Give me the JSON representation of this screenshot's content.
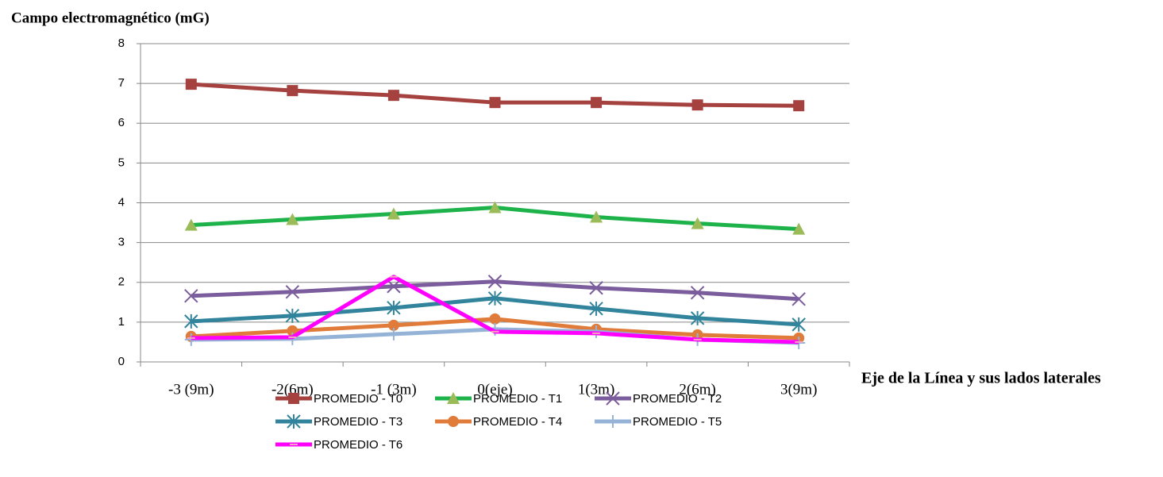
{
  "chart_data": {
    "type": "line",
    "title": "Campo electromagnético (mG)",
    "x_label": "Eje de la Línea y sus lados laterales",
    "categories": [
      "-3 (9m)",
      "-2(6m)",
      "-1 (3m)",
      "0(eje)",
      "1(3m)",
      "2(6m)",
      "3(9m)"
    ],
    "ylim": [
      0,
      8
    ],
    "yticks": [
      0,
      1,
      2,
      3,
      4,
      5,
      6,
      7,
      8
    ],
    "grid": true,
    "legend": "bottom",
    "series": [
      {
        "name": "PROMEDIO - T0",
        "color": "#a5413e",
        "marker": "square",
        "values": [
          6.98,
          6.82,
          6.7,
          6.52,
          6.52,
          6.46,
          6.44
        ]
      },
      {
        "name": "PROMEDIO - T1",
        "color": "#1db34a",
        "marker": "triangle",
        "values": [
          3.44,
          3.58,
          3.72,
          3.88,
          3.64,
          3.48,
          3.34
        ]
      },
      {
        "name": "PROMEDIO - T2",
        "color": "#7b5c9c",
        "marker": "cross",
        "values": [
          1.66,
          1.76,
          1.9,
          2.02,
          1.86,
          1.74,
          1.58
        ]
      },
      {
        "name": "PROMEDIO - T3",
        "color": "#31849b",
        "marker": "star",
        "values": [
          1.02,
          1.16,
          1.36,
          1.6,
          1.34,
          1.1,
          0.94
        ]
      },
      {
        "name": "PROMEDIO - T4",
        "color": "#e07b39",
        "marker": "circle",
        "values": [
          0.64,
          0.78,
          0.92,
          1.08,
          0.82,
          0.68,
          0.6
        ]
      },
      {
        "name": "PROMEDIO - T5",
        "color": "#95b3d7",
        "marker": "plus",
        "values": [
          0.56,
          0.58,
          0.7,
          0.82,
          0.76,
          0.56,
          0.48
        ]
      },
      {
        "name": "PROMEDIO - T6",
        "color": "#ff00ff",
        "marker": "dash",
        "values": [
          0.6,
          0.62,
          2.14,
          0.76,
          0.72,
          0.56,
          0.5
        ]
      }
    ]
  }
}
